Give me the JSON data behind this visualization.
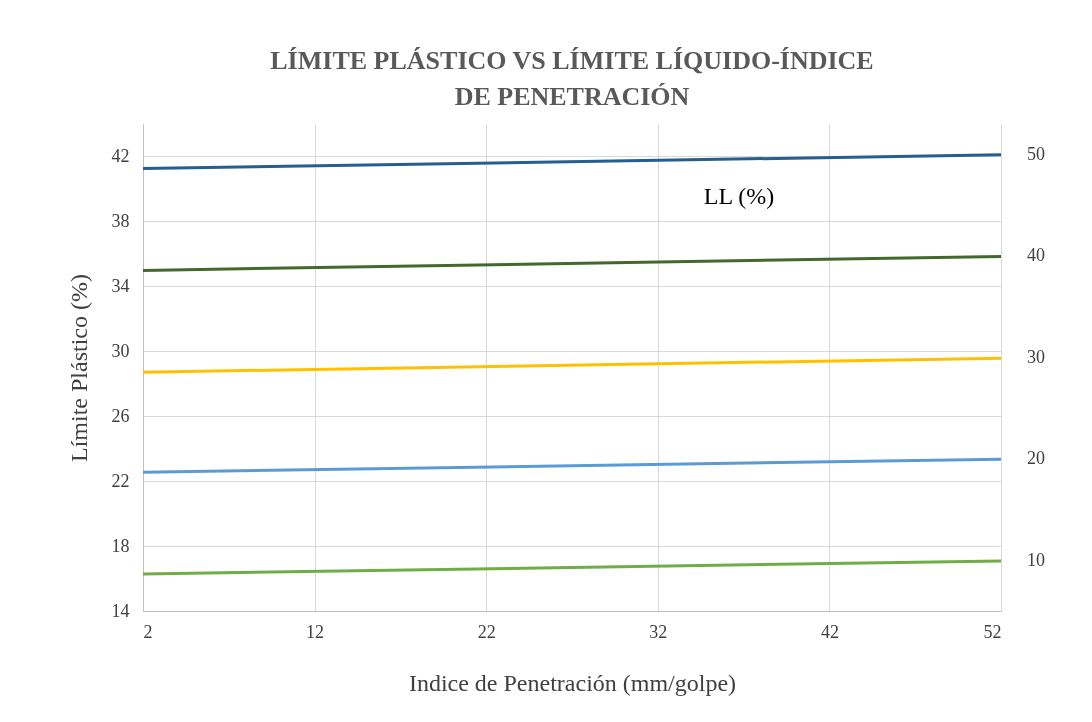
{
  "chart_data": {
    "type": "line",
    "title": "LÍMITE PLÁSTICO VS LÍMITE LÍQUIDO-ÍNDICE DE PENETRACIÓN",
    "xlabel": "Indice de Penetración (mm/golpe)",
    "ylabel": "Límite Plástico (%)",
    "legend_title": "LL (%)",
    "x": [
      2,
      52
    ],
    "xlim": [
      2,
      52
    ],
    "xticks": [
      2,
      12,
      22,
      32,
      42,
      52
    ],
    "ylim": [
      14,
      44
    ],
    "yticks": [
      14,
      18,
      22,
      26,
      30,
      34,
      38,
      42
    ],
    "grid": true,
    "marker": "none",
    "line_style": "solid",
    "series": [
      {
        "name": "50",
        "color": "#255e91",
        "values": [
          41.26,
          42.1
        ]
      },
      {
        "name": "40",
        "color": "#43682b",
        "values": [
          34.98,
          35.84
        ]
      },
      {
        "name": "30",
        "color": "#ffc000",
        "values": [
          28.71,
          29.57
        ]
      },
      {
        "name": "20",
        "color": "#5b9bd5",
        "values": [
          22.55,
          23.35
        ]
      },
      {
        "name": "10",
        "color": "#70ad47",
        "values": [
          16.28,
          17.08
        ]
      }
    ]
  }
}
